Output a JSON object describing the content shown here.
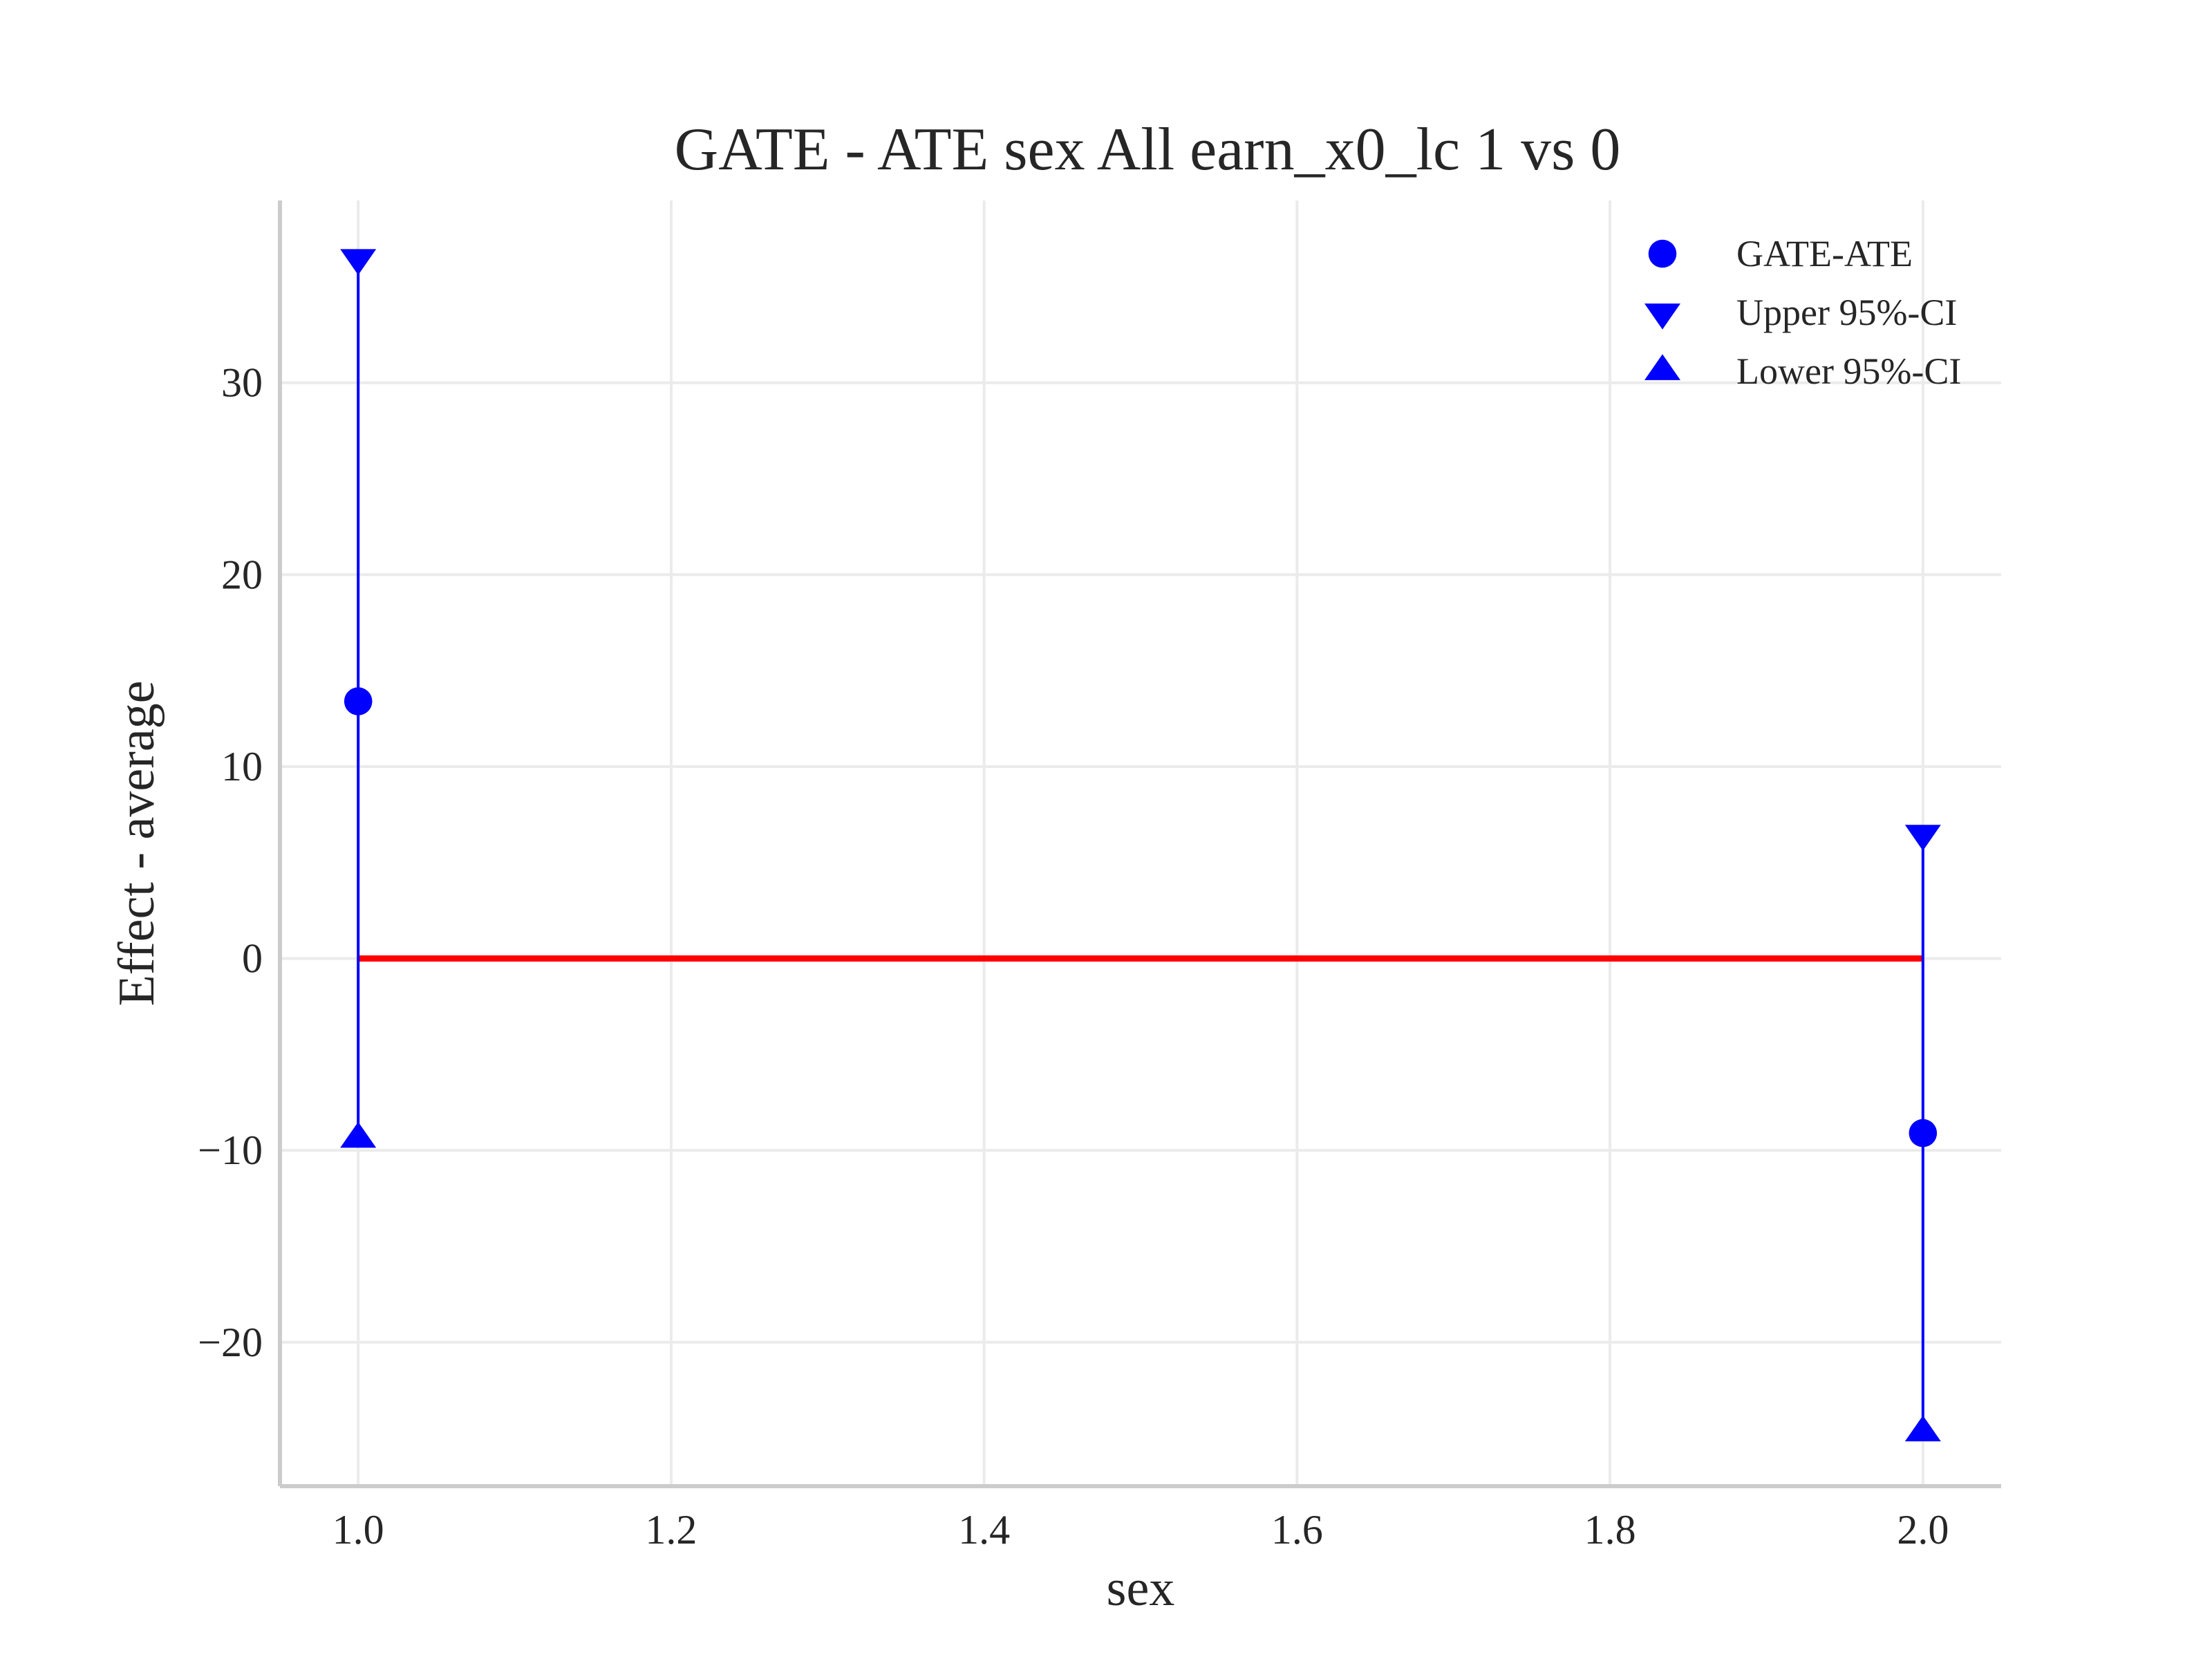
{
  "colors": {
    "marker": "#0000ff",
    "zero_line": "#ff0000",
    "grid": "#ebebeb",
    "spine": "#cccccc",
    "text": "#262626"
  },
  "chart_data": {
    "type": "scatter",
    "title": "GATE - ATE sex All earn_x0_lc  1 vs 0",
    "xlabel": "sex",
    "ylabel": "Effect - average",
    "xlim": [
      0.95,
      2.05
    ],
    "ylim": [
      -27.5,
      39.5
    ],
    "xticks": [
      1.0,
      1.2,
      1.4,
      1.6,
      1.8,
      2.0
    ],
    "xtick_labels": [
      "1.0",
      "1.2",
      "1.4",
      "1.6",
      "1.8",
      "2.0"
    ],
    "yticks": [
      -20,
      -10,
      0,
      10,
      20,
      30
    ],
    "ytick_labels": [
      "−20",
      "−10",
      "0",
      "10",
      "20",
      "30"
    ],
    "grid": true,
    "legend_position": "top-right",
    "x": [
      1.0,
      2.0
    ],
    "series": [
      {
        "name": "GATE-ATE",
        "marker": "circle",
        "values": [
          13.4,
          -9.1
        ]
      },
      {
        "name": "Upper 95%-CI",
        "marker": "triangle-down",
        "values": [
          36.5,
          6.5
        ]
      },
      {
        "name": "Lower 95%-CI",
        "marker": "triangle-up",
        "values": [
          -9.4,
          -24.7
        ]
      }
    ],
    "reference_line": {
      "y": 0,
      "x_range": [
        1.0,
        2.0
      ],
      "color": "#ff0000"
    }
  }
}
